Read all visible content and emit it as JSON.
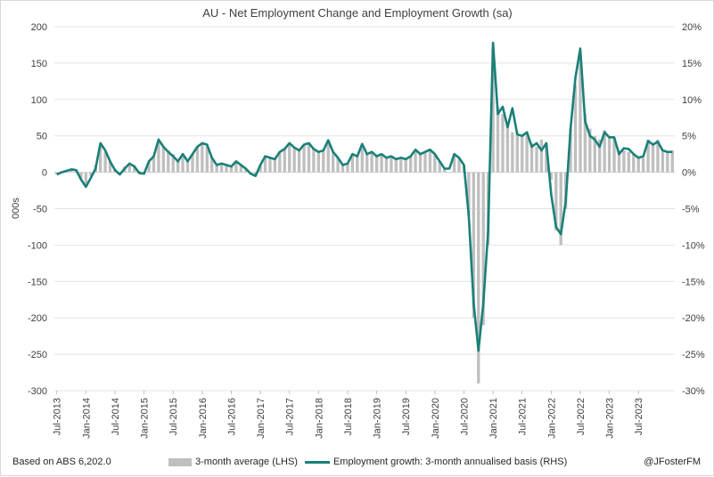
{
  "chart_data": {
    "type": "bar+line",
    "title": "AU - Net Employment Change and Employment Growth (sa)",
    "ylabel_left": "000s",
    "ylim_left": [
      -300,
      200
    ],
    "ylim_right": [
      -30,
      20
    ],
    "y_ticks_left": [
      "200",
      "150",
      "100",
      "50",
      "0",
      "-50",
      "-100",
      "-150",
      "-200",
      "-250",
      "-300"
    ],
    "y_ticks_right": [
      "20%",
      "15%",
      "10%",
      "5%",
      "0%",
      "-5%",
      "-10%",
      "-15%",
      "-20%",
      "-25%",
      "-30%"
    ],
    "x_ticks": [
      "Jul-2013",
      "Jan-2014",
      "Jul-2014",
      "Jan-2015",
      "Jul-2015",
      "Jan-2016",
      "Jul-2016",
      "Jan-2017",
      "Jul-2017",
      "Jan-2018",
      "Jul-2018",
      "Jan-2019",
      "Jul-2019",
      "Jan-2020",
      "Jul-2020",
      "Jan-2021",
      "Jul-2021",
      "Jan-2022",
      "Jul-2022",
      "Jan-2023",
      "Jul-2023"
    ],
    "start_month": "Jul-2013",
    "series": [
      {
        "name": "3-month average (LHS)",
        "axis": "left",
        "type": "bar",
        "color": "#bfbfbf",
        "values": [
          -3,
          0,
          3,
          5,
          3,
          -10,
          -18,
          -5,
          10,
          38,
          28,
          15,
          5,
          0,
          8,
          12,
          10,
          2,
          0,
          15,
          22,
          42,
          35,
          30,
          25,
          18,
          22,
          15,
          25,
          35,
          40,
          38,
          20,
          10,
          12,
          10,
          8,
          15,
          10,
          5,
          0,
          -5,
          10,
          22,
          20,
          18,
          28,
          32,
          40,
          34,
          30,
          38,
          40,
          32,
          28,
          30,
          42,
          28,
          20,
          10,
          12,
          25,
          22,
          38,
          25,
          28,
          22,
          25,
          20,
          22,
          18,
          20,
          18,
          22,
          30,
          25,
          28,
          30,
          25,
          15,
          5,
          0,
          25,
          20,
          10,
          -60,
          -200,
          -290,
          -210,
          -100,
          170,
          90,
          80,
          70,
          55,
          55,
          50,
          55,
          40,
          35,
          45,
          40,
          -10,
          -80,
          -100,
          -50,
          60,
          120,
          160,
          80,
          60,
          50,
          45,
          58,
          50,
          48,
          30,
          30,
          28,
          25,
          20,
          20,
          45,
          40,
          45,
          30,
          28,
          30
        ]
      },
      {
        "name": "Employment growth: 3-month annualised basis (RHS)",
        "axis": "right",
        "type": "line",
        "color": "#1a8078",
        "values": [
          -0.3,
          0,
          0.2,
          0.4,
          0.3,
          -1.0,
          -2.0,
          -0.8,
          0.5,
          4.0,
          3.0,
          1.5,
          0.3,
          -0.3,
          0.5,
          1.2,
          0.8,
          -0.1,
          -0.2,
          1.5,
          2.2,
          4.5,
          3.5,
          2.8,
          2.2,
          1.5,
          2.5,
          1.5,
          2.5,
          3.5,
          4.0,
          3.8,
          2.0,
          1.0,
          1.2,
          1.0,
          0.8,
          1.5,
          1.0,
          0.5,
          -0.2,
          -0.5,
          1.0,
          2.2,
          2.0,
          1.8,
          2.8,
          3.2,
          4.0,
          3.4,
          3.0,
          3.8,
          4.0,
          3.2,
          2.8,
          3.0,
          4.4,
          2.8,
          2.0,
          1.0,
          1.2,
          2.5,
          2.2,
          3.9,
          2.5,
          2.8,
          2.2,
          2.5,
          2.0,
          2.2,
          1.8,
          2.0,
          1.8,
          2.2,
          3.1,
          2.5,
          2.8,
          3.1,
          2.5,
          1.5,
          0.5,
          0.5,
          2.5,
          2.0,
          1.0,
          -6.0,
          -18.0,
          -24.5,
          -18.0,
          -8.0,
          17.8,
          8.0,
          9.0,
          6.2,
          8.8,
          5.2,
          5.0,
          5.5,
          3.5,
          4.0,
          3.0,
          4.0,
          -3.0,
          -7.5,
          -8.5,
          -4.0,
          6.0,
          13.0,
          17.0,
          7.0,
          5.0,
          4.5,
          3.5,
          5.5,
          4.8,
          4.8,
          2.5,
          3.3,
          3.2,
          2.5,
          2.0,
          2.2,
          4.3,
          3.8,
          4.2,
          3.0,
          2.8,
          2.8
        ]
      }
    ],
    "legend": [
      "3-month average (LHS)",
      "Employment growth: 3-month annualised basis (RHS)"
    ]
  },
  "footer": {
    "source": "Based on ABS 6,202.0",
    "credit": "@JFosterFM"
  }
}
